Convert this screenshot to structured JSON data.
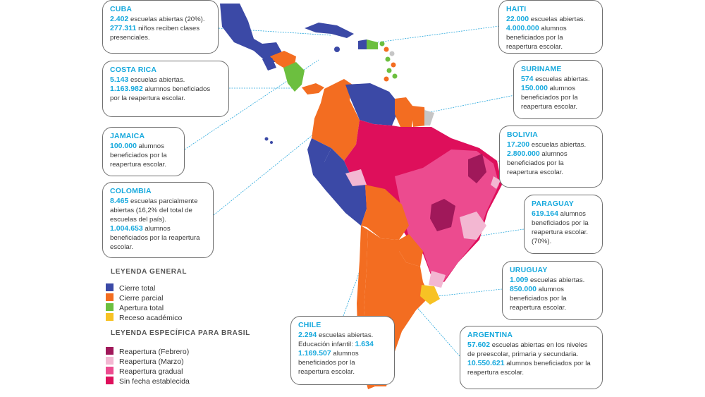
{
  "colors": {
    "cierre_total": "#3b49a6",
    "cierre_parcial": "#f36d21",
    "apertura_total": "#6cbf3f",
    "receso": "#f7c224",
    "brasil_febrero": "#a0185a",
    "brasil_marzo": "#f3b7d2",
    "brasil_gradual": "#ec4b8f",
    "brasil_sin_fecha": "#de0f5b",
    "sin_dato": "#c6c6c6",
    "title": "#17a9dd"
  },
  "countries": [
    {
      "name": "CUBA",
      "lines": [
        {
          "num": "2.402",
          "text": "escuelas abiertas (20%)."
        },
        {
          "num": "277.311",
          "text": "niños reciben clases presenciales."
        }
      ]
    },
    {
      "name": "COSTA RICA",
      "lines": [
        {
          "num": "5.143",
          "text": "escuelas abiertas."
        },
        {
          "num": "1.163.982",
          "text": "alumnos beneficiados por la reapertura escolar."
        }
      ]
    },
    {
      "name": "JAMAICA",
      "lines": [
        {
          "num": "100.000",
          "text": "alumnos beneficiados por la reapertura escolar."
        }
      ]
    },
    {
      "name": "COLOMBIA",
      "lines": [
        {
          "num": "8.465",
          "text": "escuelas parcialmente abiertas (16,2% del total de escuelas del país)."
        },
        {
          "num": "1.004.653",
          "text": "alumnos beneficiados por la reapertura escolar."
        }
      ]
    },
    {
      "name": "HAITI",
      "lines": [
        {
          "num": "22.000",
          "text": "escuelas abiertas."
        },
        {
          "num": "4.000.000",
          "text": "alumnos beneficiados por la reapertura escolar."
        }
      ]
    },
    {
      "name": "SURINAME",
      "lines": [
        {
          "num": "574",
          "text": "escuelas abiertas."
        },
        {
          "num": "150.000",
          "text": "alumnos beneficiados por la reapertura escolar."
        }
      ]
    },
    {
      "name": "BOLIVIA",
      "lines": [
        {
          "num": "17.200",
          "text": "escuelas abiertas."
        },
        {
          "num": "2.800.000",
          "text": "alumnos beneficiados por la reapertura escolar."
        }
      ]
    },
    {
      "name": "PARAGUAY",
      "lines": [
        {
          "num": "619.164",
          "text": "alumnos beneficiados por la reapertura escolar. (70%)."
        }
      ]
    },
    {
      "name": "URUGUAY",
      "lines": [
        {
          "num": "1.009",
          "text": "escuelas abiertas."
        },
        {
          "num": "850.000",
          "text": "alumnos beneficiados por la reapertura escolar."
        }
      ]
    },
    {
      "name": "CHILE",
      "lines": [
        {
          "num": "2.294",
          "text": "escuelas abiertas."
        },
        {
          "num": "1.634",
          "text": "",
          "pre": "Educación infantil:"
        },
        {
          "num": "1.169.507",
          "text": "alumnos beneficiados por la reapertura escolar."
        }
      ]
    },
    {
      "name": "ARGENTINA",
      "lines": [
        {
          "num": "57.602",
          "text": "escuelas abiertas en los niveles de preescolar, primaria y secundaria."
        },
        {
          "num": "10.550.621",
          "text": "alumnos beneficiados por la reapertura escolar."
        }
      ]
    }
  ],
  "legend_general": {
    "title": "LEYENDA GENERAL",
    "items": [
      "Cierre total",
      "Cierre parcial",
      "Apertura total",
      "Receso académico"
    ]
  },
  "legend_brasil": {
    "title": "LEYENDA ESPECÍFICA PARA BRASIL",
    "items": [
      "Reapertura (Febrero)",
      "Reapertura (Marzo)",
      "Reapertura gradual",
      "Sin fecha establecida"
    ]
  }
}
